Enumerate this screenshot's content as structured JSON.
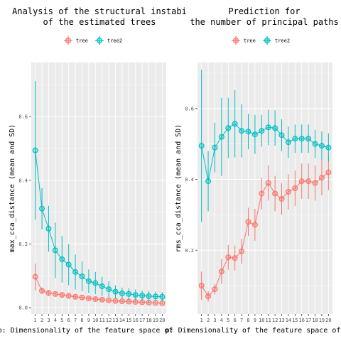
{
  "chart_data": [
    {
      "type": "line",
      "title": "Analysis of the structural instabi\nof the estimated trees",
      "xlabel": "p: Dimensionality of the feature space of",
      "ylabel": "max_cca_distance (mean and SD)",
      "ylim": [
        -0.02,
        0.77
      ],
      "yticks": [
        0.0,
        0.2,
        0.4,
        0.6
      ],
      "ytick_labels": [
        "0.0",
        "0.2",
        "0.4",
        "0.6"
      ],
      "x": [
        1,
        2,
        3,
        4,
        5,
        6,
        7,
        8,
        9,
        10,
        11,
        12,
        13,
        14,
        15,
        16,
        17,
        18,
        19,
        20
      ],
      "grid": true,
      "legend_position": "top",
      "series": [
        {
          "name": "tree",
          "color": "#F8766D",
          "mean": [
            0.097,
            0.053,
            0.046,
            0.043,
            0.04,
            0.037,
            0.034,
            0.032,
            0.029,
            0.027,
            0.025,
            0.023,
            0.021,
            0.02,
            0.019,
            0.018,
            0.017,
            0.016,
            0.015,
            0.014
          ],
          "sd": [
            0.042,
            0.01,
            0.009,
            0.008,
            0.007,
            0.007,
            0.006,
            0.006,
            0.005,
            0.005,
            0.005,
            0.005,
            0.004,
            0.004,
            0.004,
            0.004,
            0.004,
            0.004,
            0.004,
            0.004
          ]
        },
        {
          "name": "tree2",
          "color": "#00BFC4",
          "mean": [
            0.494,
            0.311,
            0.248,
            0.18,
            0.152,
            0.135,
            0.112,
            0.098,
            0.083,
            0.077,
            0.067,
            0.058,
            0.05,
            0.045,
            0.043,
            0.04,
            0.038,
            0.036,
            0.035,
            0.034
          ],
          "sd": [
            0.218,
            0.065,
            0.072,
            0.087,
            0.073,
            0.065,
            0.055,
            0.047,
            0.037,
            0.035,
            0.03,
            0.025,
            0.02,
            0.018,
            0.018,
            0.017,
            0.016,
            0.016,
            0.015,
            0.015
          ]
        }
      ]
    },
    {
      "type": "line",
      "title": "Prediction for\nthe number of principal paths",
      "xlabel": "p: Dimensionality of the feature space of t",
      "ylabel": "rms_cca_distance (mean and SD)",
      "ylim": [
        0.02,
        0.73
      ],
      "yticks": [
        0.2,
        0.4,
        0.6
      ],
      "ytick_labels": [
        "0.2",
        "0.4",
        "0.6"
      ],
      "x": [
        1,
        2,
        3,
        4,
        5,
        6,
        7,
        8,
        9,
        10,
        11,
        12,
        13,
        14,
        15,
        16,
        17,
        18,
        19,
        20
      ],
      "grid": true,
      "legend_position": "top",
      "series": [
        {
          "name": "tree",
          "color": "#F8766D",
          "mean": [
            0.1,
            0.07,
            0.09,
            0.14,
            0.18,
            0.178,
            0.197,
            0.28,
            0.272,
            0.36,
            0.39,
            0.36,
            0.345,
            0.365,
            0.375,
            0.395,
            0.395,
            0.39,
            0.405,
            0.42
          ],
          "sd": [
            0.04,
            0.015,
            0.015,
            0.035,
            0.035,
            0.035,
            0.035,
            0.04,
            0.045,
            0.045,
            0.05,
            0.05,
            0.045,
            0.05,
            0.05,
            0.05,
            0.05,
            0.05,
            0.05,
            0.05
          ]
        },
        {
          "name": "tree2",
          "color": "#00BFC4",
          "mean": [
            0.495,
            0.395,
            0.49,
            0.52,
            0.545,
            0.557,
            0.537,
            0.535,
            0.527,
            0.537,
            0.547,
            0.545,
            0.525,
            0.505,
            0.515,
            0.515,
            0.515,
            0.5,
            0.495,
            0.49
          ],
          "sd": [
            0.215,
            0.085,
            0.07,
            0.11,
            0.085,
            0.095,
            0.075,
            0.05,
            0.055,
            0.045,
            0.05,
            0.05,
            0.045,
            0.045,
            0.04,
            0.04,
            0.04,
            0.04,
            0.04,
            0.04
          ]
        }
      ]
    }
  ]
}
